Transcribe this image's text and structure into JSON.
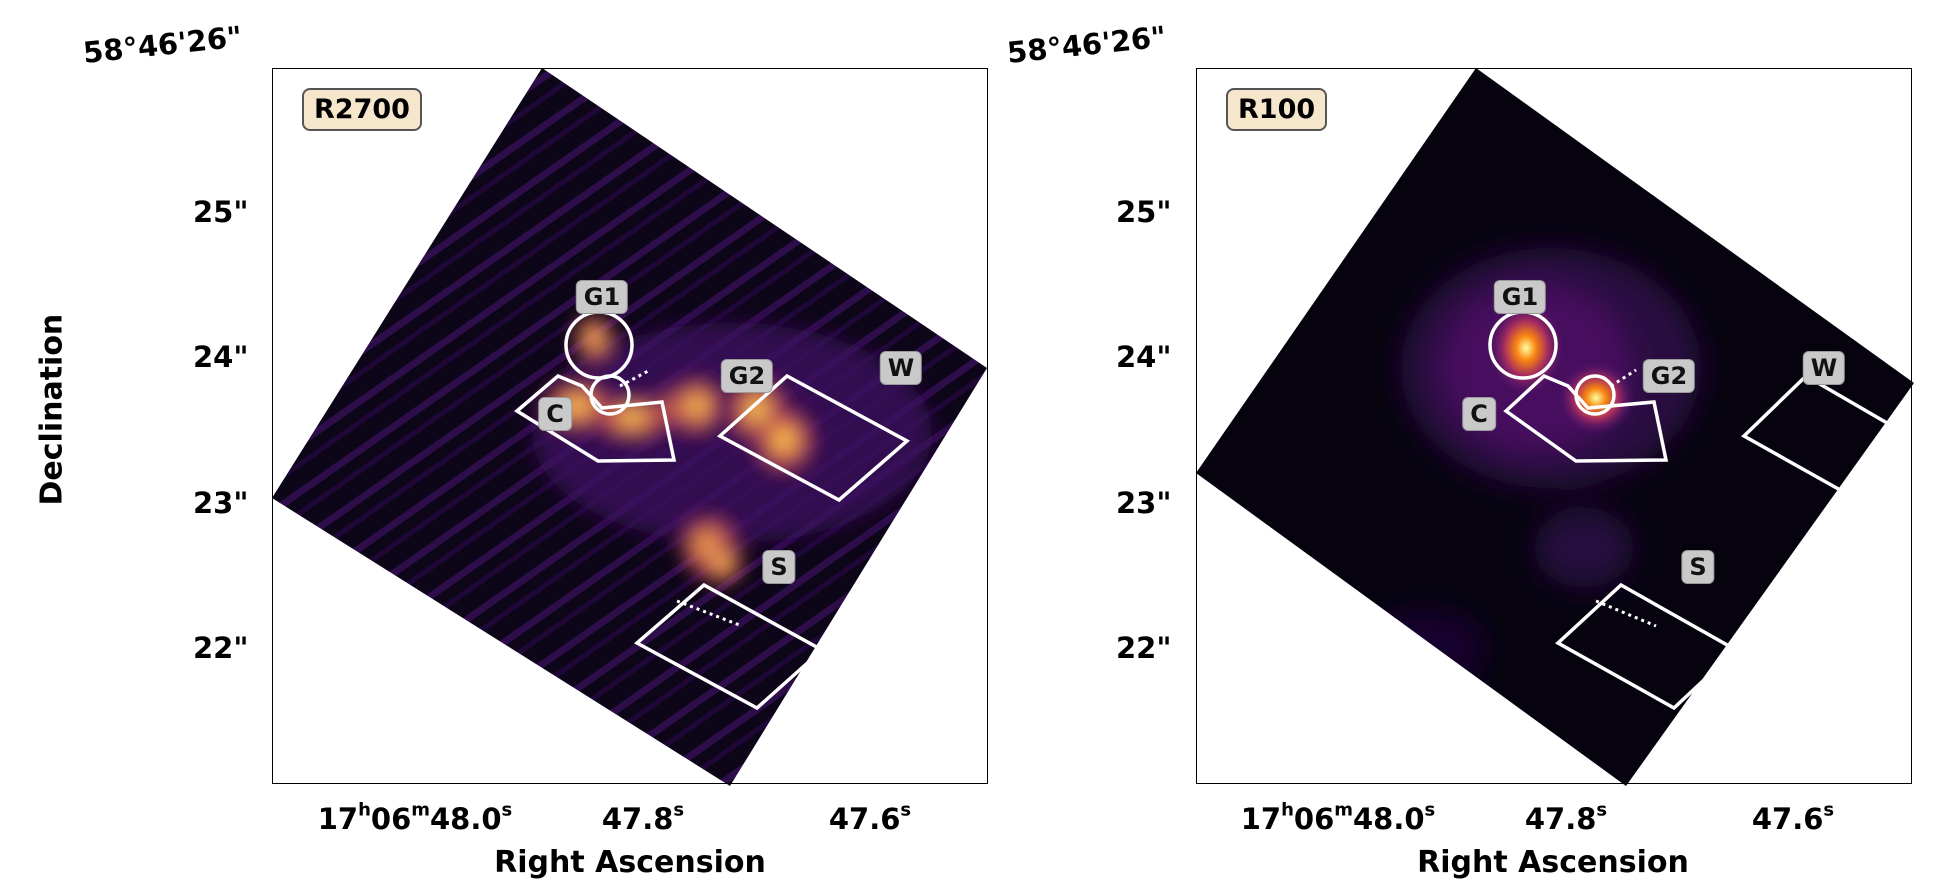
{
  "figure": {
    "y_axis_label": "Declination",
    "x_axis_label": "Right Ascension",
    "dec_top_label": "58°46'26\"",
    "y_ticks": [
      "25\"",
      "24\"",
      "23\"",
      "22\""
    ],
    "x_ticks": [
      {
        "h": "17",
        "m": "06",
        "s": "48.0"
      },
      {
        "s": "47.8"
      },
      {
        "s": "47.6"
      }
    ]
  },
  "panels": [
    {
      "id": "left",
      "badge": "R2700",
      "colormap": "inferno",
      "regions": {
        "G1": "G1",
        "G2": "G2",
        "C": "C",
        "W": "W",
        "S": "S"
      }
    },
    {
      "id": "right",
      "badge": "R100",
      "colormap": "inferno",
      "regions": {
        "G1": "G1",
        "G2": "G2",
        "C": "C",
        "W": "W",
        "S": "S"
      }
    }
  ]
}
